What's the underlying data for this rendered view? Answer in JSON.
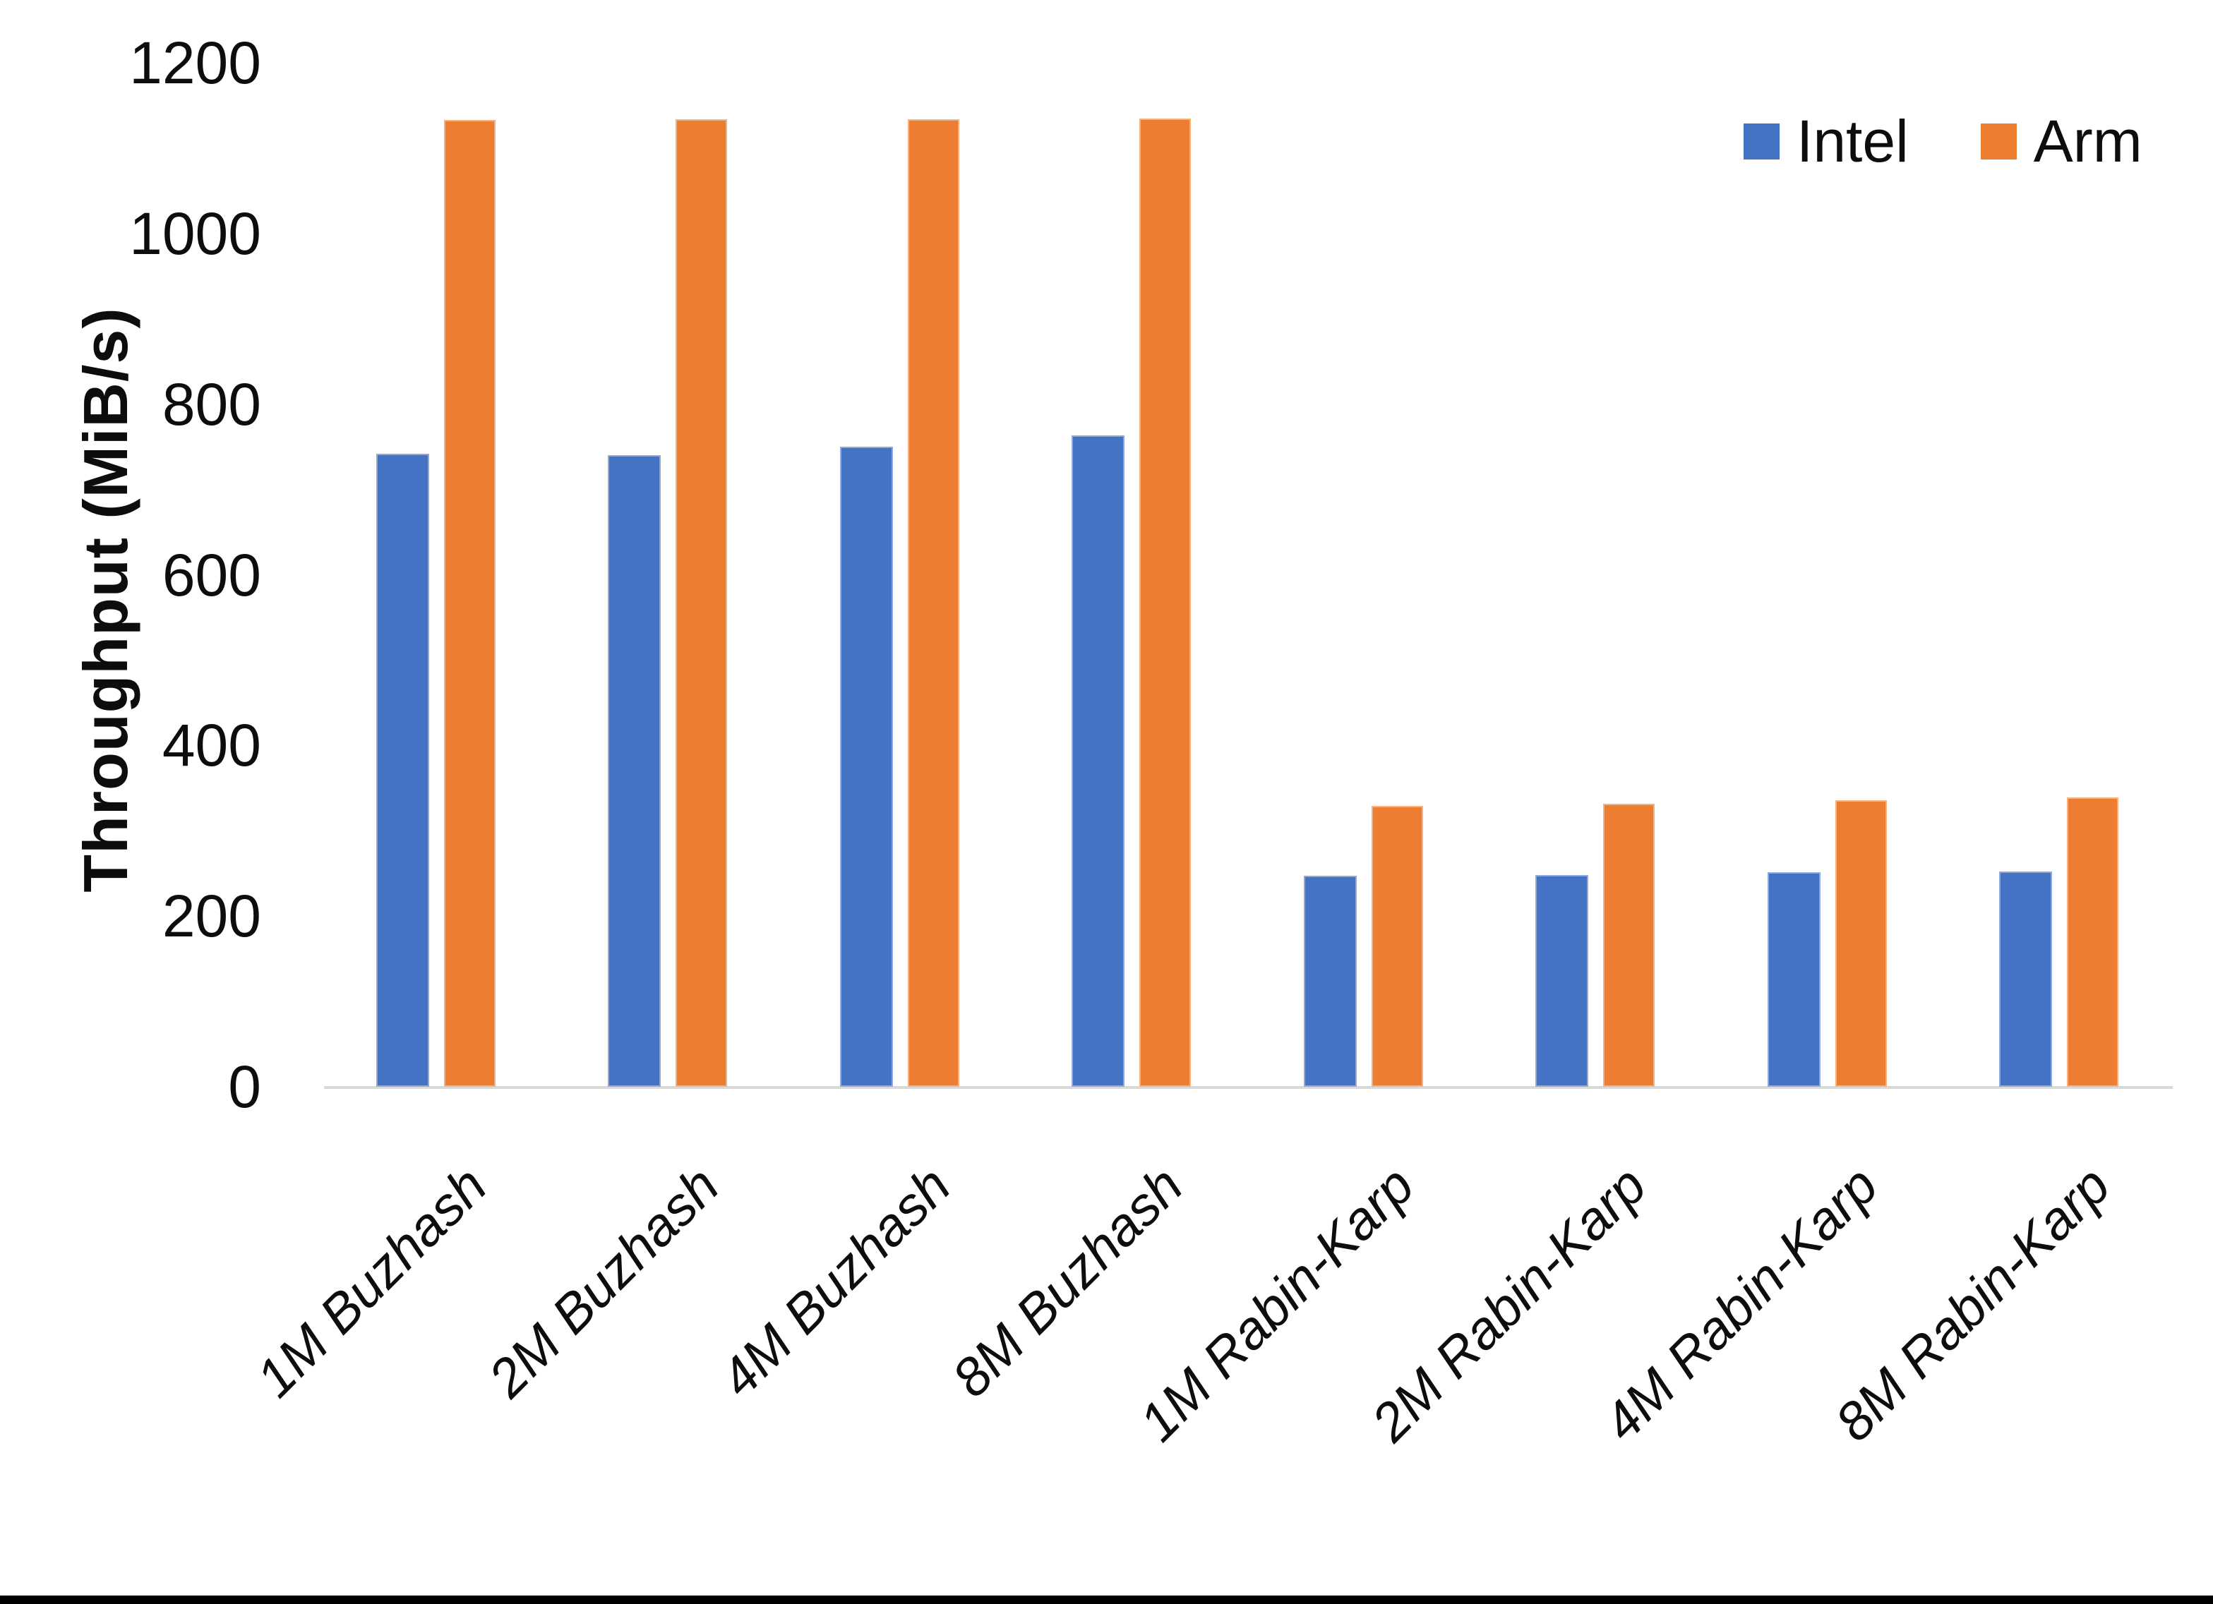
{
  "chart_data": {
    "type": "bar",
    "title": "",
    "xlabel": "",
    "ylabel": "Throughput (MiB/s)",
    "ylim": [
      0,
      1200
    ],
    "y_ticks": [
      0,
      200,
      400,
      600,
      800,
      1000,
      1200
    ],
    "grid": false,
    "legend_position": "top-right",
    "categories": [
      "1M Buzhash",
      "2M Buzhash",
      "4M Buzhash",
      "8M Buzhash",
      "1M Rabin-Karp",
      "2M Rabin-Karp",
      "4M Rabin-Karp",
      "8M Rabin-Karp"
    ],
    "series": [
      {
        "name": "Intel",
        "color": "#4472C4",
        "values": [
          742,
          740,
          750,
          763,
          247,
          248,
          251,
          252
        ]
      },
      {
        "name": "Arm",
        "color": "#ED7D31",
        "values": [
          1133,
          1134,
          1134,
          1135,
          329,
          332,
          336,
          339
        ]
      }
    ]
  },
  "colors": {
    "background": "#FFFFFF",
    "axis_line": "#D9D9D9",
    "text": "#0D0D0D",
    "bottom_bar": "#000000"
  }
}
